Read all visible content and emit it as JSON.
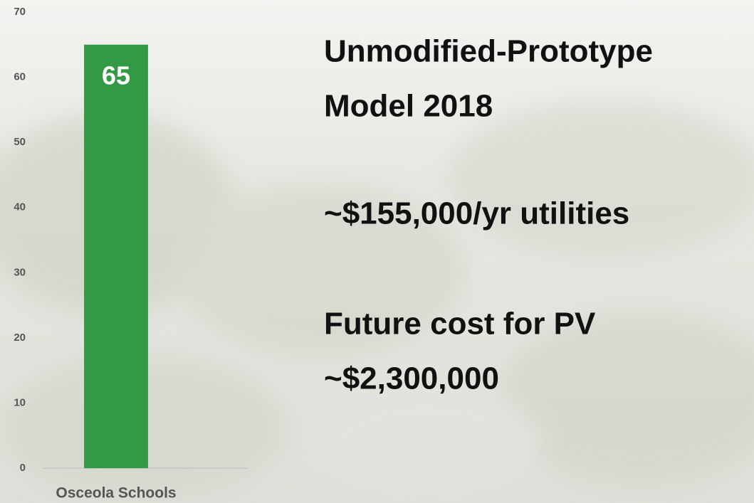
{
  "chart_data": {
    "type": "bar",
    "categories": [
      "Osceola Schools"
    ],
    "values": [
      65
    ],
    "color": "#339944",
    "ylim": [
      0,
      70
    ],
    "yticks": [
      0,
      10,
      20,
      30,
      40,
      50,
      60,
      70
    ],
    "grid": false,
    "annotations": [
      "Unmodified-Prototype",
      "Model 2018",
      "~$155,000/yr utilities",
      "Future cost for PV",
      "~$2,300,000"
    ]
  }
}
